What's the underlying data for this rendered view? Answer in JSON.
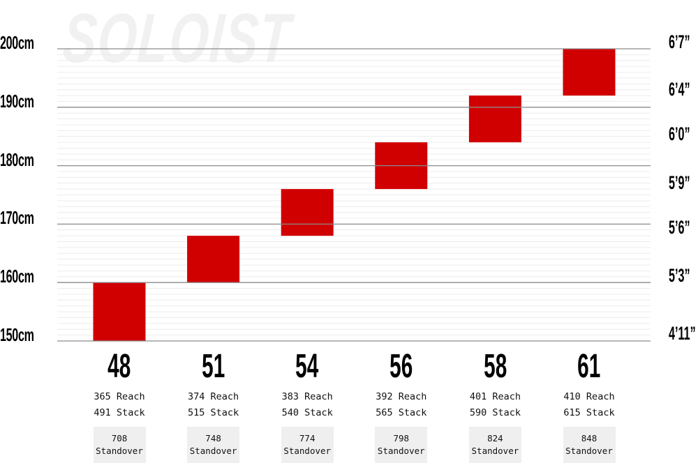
{
  "watermark": "SOLOIST",
  "chart_data": {
    "type": "bar",
    "subtype": "floating-range",
    "title": "",
    "categories": [
      "48",
      "51",
      "54",
      "56",
      "58",
      "61"
    ],
    "series": [
      {
        "values": [
          [
            150,
            160
          ],
          [
            160,
            168
          ],
          [
            168,
            176
          ],
          [
            176,
            184
          ],
          [
            184,
            192
          ],
          [
            192,
            200
          ]
        ]
      }
    ],
    "ylim": [
      150,
      200
    ],
    "y_ticks_left": [
      "150cm",
      "160cm",
      "170cm",
      "180cm",
      "190cm",
      "200cm"
    ],
    "y_tick_values_left": [
      150,
      160,
      170,
      180,
      190,
      200
    ],
    "y_ticks_right": [
      "4’11”",
      "5’3”",
      "5’6”",
      "5’9”",
      "6’0”",
      "6’4”",
      "6’7”"
    ],
    "grid": true,
    "bar_color": "#d10000",
    "geometry": [
      {
        "reach": "365 Reach",
        "stack": "491 Stack",
        "standover": "708",
        "standover_label": "Standover"
      },
      {
        "reach": "374 Reach",
        "stack": "515 Stack",
        "standover": "748",
        "standover_label": "Standover"
      },
      {
        "reach": "383 Reach",
        "stack": "540 Stack",
        "standover": "774",
        "standover_label": "Standover"
      },
      {
        "reach": "392 Reach",
        "stack": "565 Stack",
        "standover": "798",
        "standover_label": "Standover"
      },
      {
        "reach": "401 Reach",
        "stack": "590 Stack",
        "standover": "824",
        "standover_label": "Standover"
      },
      {
        "reach": "410 Reach",
        "stack": "615 Stack",
        "standover": "848",
        "standover_label": "Standover"
      }
    ]
  }
}
